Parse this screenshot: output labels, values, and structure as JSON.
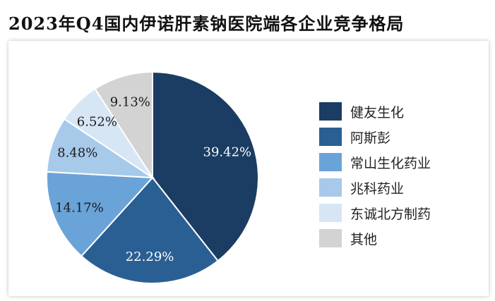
{
  "title": "2023年Q4国内伊诺肝素钠医院端各企业竞争格局",
  "chart_data": {
    "type": "pie",
    "title": "2023年Q4国内伊诺肝素钠医院端各企业竞争格局",
    "legend_position": "right",
    "slices": [
      {
        "name": "健友生化",
        "value": 39.42,
        "label": "39.42%",
        "color": "#1b3d63",
        "label_color": "#ffffff"
      },
      {
        "name": "阿斯彭",
        "value": 22.29,
        "label": "22.29%",
        "color": "#2a5f94",
        "label_color": "#ffffff"
      },
      {
        "name": "常山生化药业",
        "value": 14.17,
        "label": "14.17%",
        "color": "#6aa3d8",
        "label_color": "#1a1a1a"
      },
      {
        "name": "兆科药业",
        "value": 8.48,
        "label": "8.48%",
        "color": "#a7c9ea",
        "label_color": "#1a1a1a"
      },
      {
        "name": "东诚北方制药",
        "value": 6.52,
        "label": "6.52%",
        "color": "#d7e6f5",
        "label_color": "#1a1a1a"
      },
      {
        "name": "其他",
        "value": 9.13,
        "label": "9.13%",
        "color": "#d3d3d3",
        "label_color": "#1a1a1a"
      }
    ]
  }
}
